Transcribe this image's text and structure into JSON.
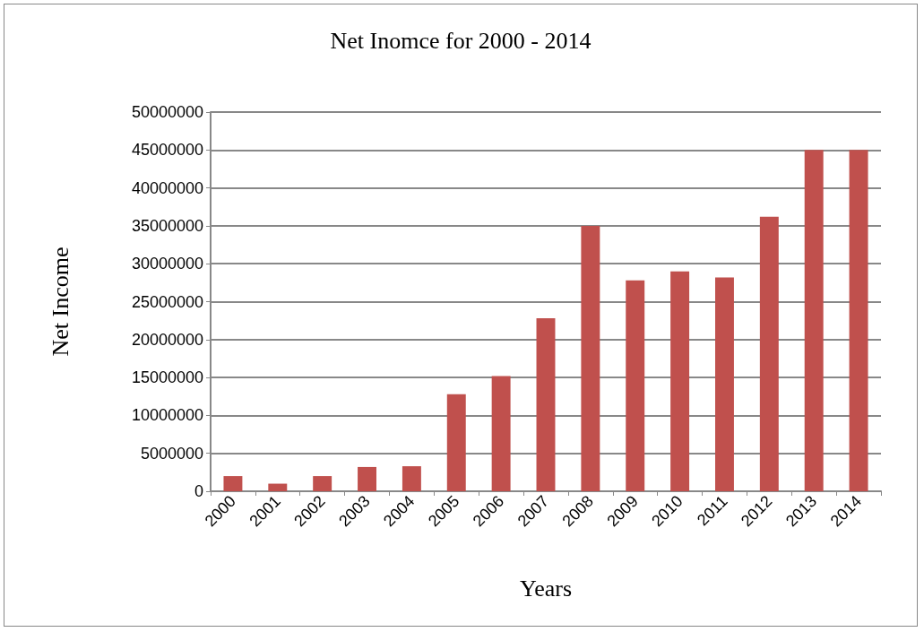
{
  "chart_data": {
    "type": "bar",
    "title": "Net Inomce for 2000 - 2014",
    "xlabel": "Years",
    "ylabel": "Net Income",
    "categories": [
      "2000",
      "2001",
      "2002",
      "2003",
      "2004",
      "2005",
      "2006",
      "2007",
      "2008",
      "2009",
      "2010",
      "2011",
      "2012",
      "2013",
      "2014"
    ],
    "values": [
      2000000,
      1000000,
      2000000,
      3200000,
      3300000,
      12800000,
      15200000,
      22800000,
      35000000,
      27800000,
      29000000,
      28200000,
      36200000,
      45000000,
      45000000
    ],
    "color": "#c0504d",
    "ylim": [
      0,
      50000000
    ],
    "yticks": [
      0,
      5000000,
      10000000,
      15000000,
      20000000,
      25000000,
      30000000,
      35000000,
      40000000,
      45000000,
      50000000
    ],
    "grid": "y"
  }
}
